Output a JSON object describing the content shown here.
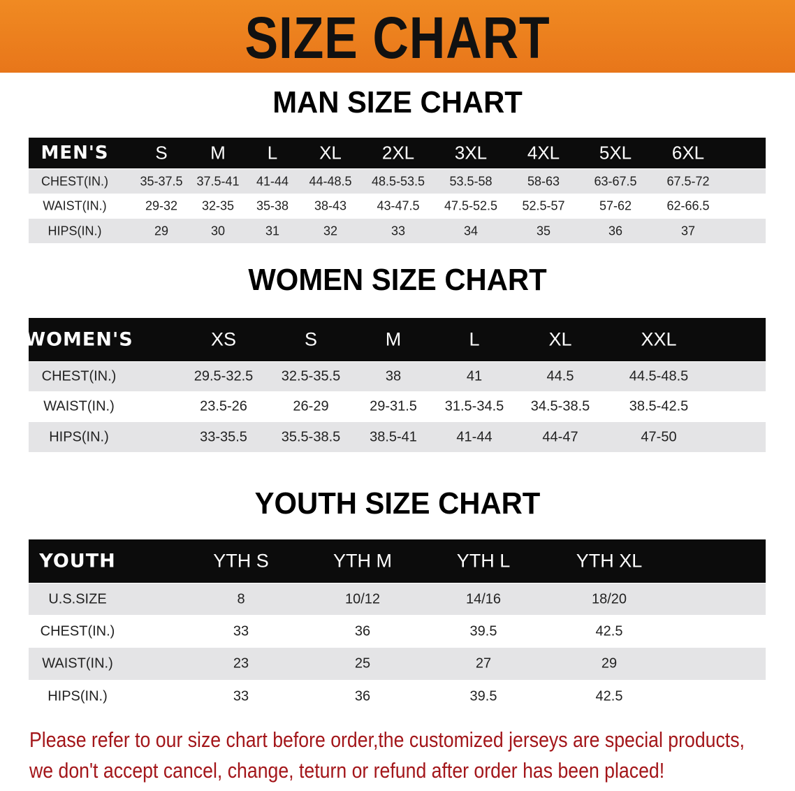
{
  "banner_title": "SIZE CHART",
  "men": {
    "title": "MAN SIZE CHART",
    "header": [
      "MEN'S",
      "S",
      "M",
      "L",
      "XL",
      "2XL",
      "3XL",
      "4XL",
      "5XL",
      "6XL"
    ],
    "rows": [
      [
        "CHEST(IN.)",
        "35-37.5",
        "37.5-41",
        "41-44",
        "44-48.5",
        "48.5-53.5",
        "53.5-58",
        "58-63",
        "63-67.5",
        "67.5-72"
      ],
      [
        "WAIST(IN.)",
        "29-32",
        "32-35",
        "35-38",
        "38-43",
        "43-47.5",
        "47.5-52.5",
        "52.5-57",
        "57-62",
        "62-66.5"
      ],
      [
        "HIPS(IN.)",
        "29",
        "30",
        "31",
        "32",
        "33",
        "34",
        "35",
        "36",
        "37"
      ]
    ]
  },
  "women": {
    "title": "WOMEN SIZE CHART",
    "header": [
      "WOMEN'S",
      "XS",
      "S",
      "M",
      "L",
      "XL",
      "XXL"
    ],
    "rows": [
      [
        "CHEST(IN.)",
        "29.5-32.5",
        "32.5-35.5",
        "38",
        "41",
        "44.5",
        "44.5-48.5"
      ],
      [
        "WAIST(IN.)",
        "23.5-26",
        "26-29",
        "29-31.5",
        "31.5-34.5",
        "34.5-38.5",
        "38.5-42.5"
      ],
      [
        "HIPS(IN.)",
        "33-35.5",
        "35.5-38.5",
        "38.5-41",
        "41-44",
        "44-47",
        "47-50"
      ]
    ]
  },
  "youth": {
    "title": "YOUTH SIZE CHART",
    "header": [
      "YOUTH",
      "YTH S",
      "YTH M",
      "YTH L",
      "YTH XL"
    ],
    "rows": [
      [
        "U.S.SIZE",
        "8",
        "10/12",
        "14/16",
        "18/20"
      ],
      [
        "CHEST(IN.)",
        "33",
        "36",
        "39.5",
        "42.5"
      ],
      [
        "WAIST(IN.)",
        "23",
        "25",
        "27",
        "29"
      ],
      [
        "HIPS(IN.)",
        "33",
        "36",
        "39.5",
        "42.5"
      ]
    ]
  },
  "note_lines": [
    "Please refer to our size chart before order,the customized jerseys are special products,",
    "we don't accept cancel, change, teturn or refund after order has been placed!"
  ],
  "colors": {
    "banner": "#e8761a",
    "header_row": "#0c0c0c",
    "shaded_row": "#e4e4e6",
    "note": "#a3161a"
  }
}
